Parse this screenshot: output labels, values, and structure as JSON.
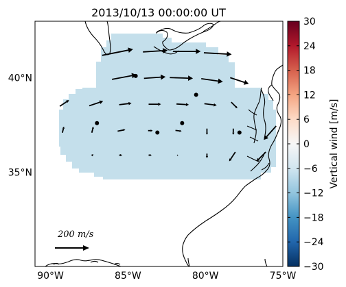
{
  "title": "2013/10/13 00:00:00 UT",
  "reference_arrow_label": "200 m/s",
  "colorbar": {
    "label": "Vertical wind [m/s]",
    "ticks": [
      "30",
      "24",
      "18",
      "12",
      "6",
      "0",
      "−6",
      "−12",
      "−18",
      "−24",
      "−30"
    ],
    "range": [
      -30,
      30
    ],
    "colormap": "RdBu_r",
    "colors": [
      "#053061",
      "#2166ac",
      "#4393c3",
      "#92c5de",
      "#d1e5f0",
      "#f7f7f7",
      "#fddbc7",
      "#f4a582",
      "#d6604d",
      "#b2182b",
      "#67001f"
    ]
  },
  "map": {
    "x_ticks": [
      {
        "label": "90°W",
        "lon": -90
      },
      {
        "label": "85°W",
        "lon": -85
      },
      {
        "label": "80°W",
        "lon": -80
      },
      {
        "label": "75°W",
        "lon": -75
      }
    ],
    "y_ticks": [
      {
        "label": "40°N",
        "lat": 40
      },
      {
        "label": "35°N",
        "lat": 35
      }
    ],
    "lon_range": [
      -91,
      -75
    ],
    "lat_range": [
      30,
      43
    ],
    "field_color": "#c4dfeb",
    "field_value": -8
  },
  "chart_data": {
    "type": "vector-field-map",
    "title": "2013/10/13 00:00:00 UT",
    "reference_vector": {
      "label": "200 m/s",
      "magnitude": 200
    },
    "vertical_wind_range": [
      -30,
      30
    ],
    "vectors": [
      {
        "lon": -86.0,
        "lat": 41.3,
        "u": 200,
        "v": 40
      },
      {
        "lon": -83.5,
        "lat": 41.4,
        "u": 160,
        "v": 10
      },
      {
        "lon": -81.5,
        "lat": 41.4,
        "u": 180,
        "v": 0
      },
      {
        "lon": -79.5,
        "lat": 41.3,
        "u": 180,
        "v": -10
      },
      {
        "lon": -85.5,
        "lat": 40.0,
        "u": 160,
        "v": 30
      },
      {
        "lon": -83.5,
        "lat": 40.0,
        "u": 140,
        "v": 10
      },
      {
        "lon": -81.8,
        "lat": 40.0,
        "u": 150,
        "v": -5
      },
      {
        "lon": -79.8,
        "lat": 39.9,
        "u": 140,
        "v": -20
      },
      {
        "lon": -78.0,
        "lat": 39.9,
        "u": 120,
        "v": -40
      },
      {
        "lon": -89.2,
        "lat": 38.6,
        "u": 60,
        "v": 40
      },
      {
        "lon": -87.2,
        "lat": 38.6,
        "u": 90,
        "v": 30
      },
      {
        "lon": -85.3,
        "lat": 38.6,
        "u": 80,
        "v": 10
      },
      {
        "lon": -83.4,
        "lat": 38.6,
        "u": 80,
        "v": 0
      },
      {
        "lon": -81.6,
        "lat": 38.6,
        "u": 80,
        "v": -5
      },
      {
        "lon": -79.8,
        "lat": 38.6,
        "u": 80,
        "v": -10
      },
      {
        "lon": -78.2,
        "lat": 38.6,
        "u": 40,
        "v": -40
      },
      {
        "lon": -89.2,
        "lat": 37.2,
        "u": 10,
        "v": 40
      },
      {
        "lon": -87.3,
        "lat": 37.2,
        "u": 10,
        "v": 40
      },
      {
        "lon": -85.5,
        "lat": 37.2,
        "u": 50,
        "v": 10
      },
      {
        "lon": -83.6,
        "lat": 37.2,
        "u": 30,
        "v": 0
      },
      {
        "lon": -81.8,
        "lat": 37.2,
        "u": 40,
        "v": -5
      },
      {
        "lon": -79.9,
        "lat": 37.2,
        "u": 0,
        "v": -40
      },
      {
        "lon": -78.2,
        "lat": 37.2,
        "u": 0,
        "v": -40
      },
      {
        "lon": -75.7,
        "lat": 37.2,
        "u": -80,
        "v": -90
      },
      {
        "lon": -87.3,
        "lat": 35.9,
        "u": 10,
        "v": 10
      },
      {
        "lon": -85.5,
        "lat": 35.9,
        "u": 20,
        "v": 0
      },
      {
        "lon": -83.6,
        "lat": 35.9,
        "u": 20,
        "v": 0
      },
      {
        "lon": -81.8,
        "lat": 35.9,
        "u": 0,
        "v": 0
      },
      {
        "lon": -79.9,
        "lat": 35.9,
        "u": 0,
        "v": -30
      },
      {
        "lon": -78.2,
        "lat": 35.9,
        "u": -40,
        "v": -60
      },
      {
        "lon": -76.3,
        "lat": 35.9,
        "u": -60,
        "v": -60
      }
    ],
    "dots": [
      {
        "lon": -84.5,
        "lat": 40.1
      },
      {
        "lon": -80.6,
        "lat": 39.1
      },
      {
        "lon": -87.0,
        "lat": 37.6
      },
      {
        "lon": -81.5,
        "lat": 37.6
      },
      {
        "lon": -83.1,
        "lat": 37.1
      },
      {
        "lon": -77.8,
        "lat": 37.1
      }
    ]
  }
}
